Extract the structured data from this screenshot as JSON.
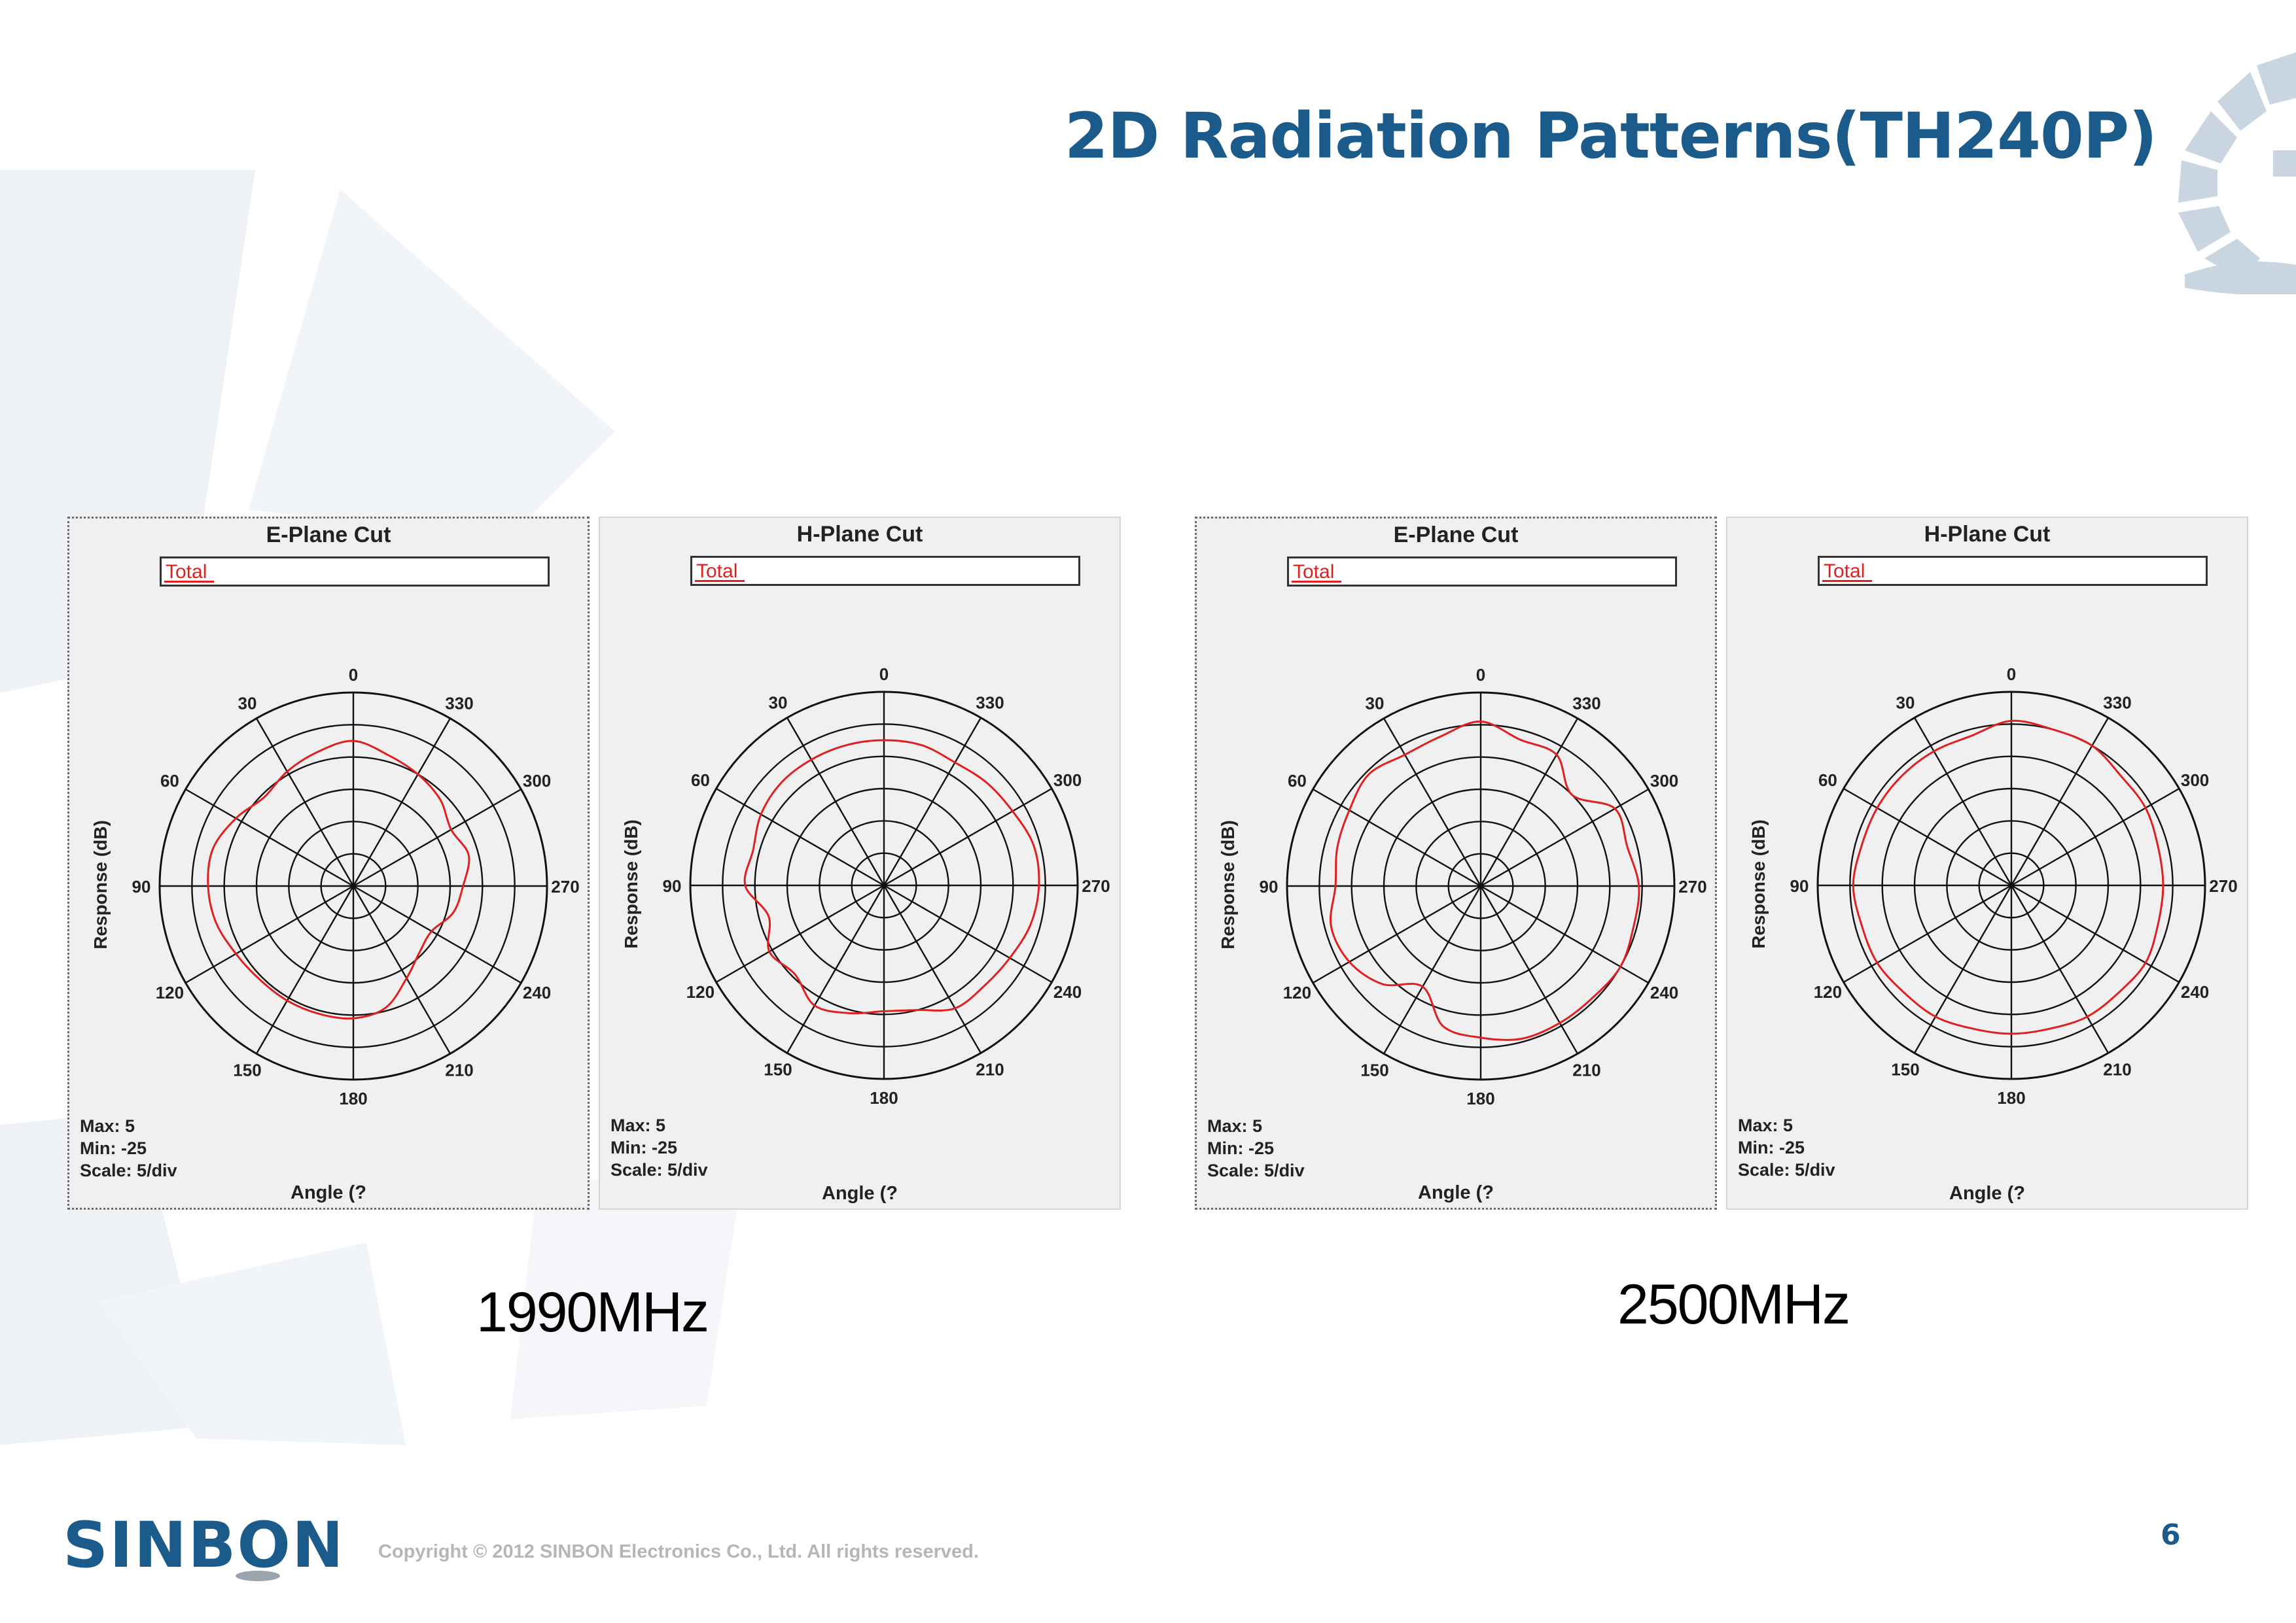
{
  "slide": {
    "title": "2D Radiation Patterns(TH240P)",
    "page_number": "6",
    "copyright": "Copyright © 2012 SINBON Electronics Co., Ltd. All rights reserved.",
    "logo_text": "SINBON",
    "accent_color": "#1b5b8c"
  },
  "groups": [
    {
      "frequency_label": "1990MHz",
      "panels": [
        {
          "title": "E-Plane Cut",
          "legend": "Total",
          "ylabel": "Response  (dB)",
          "xlabel": "Angle  (?",
          "stats": [
            "Max: 5",
            "Min: -25",
            "Scale: 5/div"
          ]
        },
        {
          "title": "H-Plane Cut",
          "legend": "Total",
          "ylabel": "Response  (dB)",
          "xlabel": "Angle  (?",
          "stats": [
            "Max: 5",
            "Min: -25",
            "Scale: 5/div"
          ]
        }
      ]
    },
    {
      "frequency_label": "2500MHz",
      "panels": [
        {
          "title": "E-Plane Cut",
          "legend": "Total",
          "ylabel": "Response  (dB)",
          "xlabel": "Angle  (?",
          "stats": [
            "Max: 5",
            "Min: -25",
            "Scale: 5/div"
          ]
        },
        {
          "title": "H-Plane Cut",
          "legend": "Total",
          "ylabel": "Response  (dB)",
          "xlabel": "Angle  (?",
          "stats": [
            "Max: 5",
            "Min: -25",
            "Scale: 5/div"
          ]
        }
      ]
    }
  ],
  "chart_data": [
    {
      "type": "polar",
      "frequency": "1990MHz",
      "title": "E-Plane Cut",
      "series_name": "Total",
      "r_range_db": [
        -25,
        5
      ],
      "r_scale_db_per_div": 5,
      "angle_direction": "counterclockwise",
      "zero_at": "top",
      "angle_ticks": [
        0,
        30,
        60,
        90,
        120,
        150,
        180,
        210,
        240,
        270,
        300,
        330
      ],
      "line_color": "#e02020",
      "angles": [
        0,
        15,
        30,
        45,
        60,
        75,
        90,
        105,
        120,
        135,
        150,
        165,
        180,
        195,
        210,
        225,
        240,
        255,
        270,
        285,
        300,
        315,
        330,
        345
      ],
      "values_db": [
        -2.5,
        -3.5,
        -4.5,
        -5.5,
        -4,
        -2.5,
        -2.5,
        -3,
        -4,
        -4.5,
        -4.5,
        -4.5,
        -4.5,
        -5.5,
        -8.5,
        -10.5,
        -11,
        -9,
        -8,
        -6.5,
        -7.5,
        -6,
        -5,
        -4
      ]
    },
    {
      "type": "polar",
      "frequency": "1990MHz",
      "title": "H-Plane Cut",
      "series_name": "Total",
      "r_range_db": [
        -25,
        5
      ],
      "r_scale_db_per_div": 5,
      "angle_direction": "counterclockwise",
      "zero_at": "top",
      "angle_ticks": [
        0,
        30,
        60,
        90,
        120,
        150,
        180,
        210,
        240,
        270,
        300,
        330
      ],
      "line_color": "#e02020",
      "angles": [
        0,
        15,
        30,
        45,
        60,
        75,
        90,
        105,
        120,
        135,
        150,
        165,
        180,
        195,
        210,
        225,
        240,
        255,
        270,
        285,
        300,
        315,
        330,
        345
      ],
      "values_db": [
        -2.5,
        -2.5,
        -2.5,
        -2.5,
        -3,
        -4,
        -3.5,
        -6.5,
        -4.5,
        -5.5,
        -3.5,
        -4.5,
        -5.5,
        -5,
        -3,
        -3,
        -2.5,
        -1.5,
        -1,
        -1,
        -2,
        -2.5,
        -3,
        -2.5
      ]
    },
    {
      "type": "polar",
      "frequency": "2500MHz",
      "title": "E-Plane Cut",
      "series_name": "Total",
      "r_range_db": [
        -25,
        5
      ],
      "r_scale_db_per_div": 5,
      "angle_direction": "counterclockwise",
      "zero_at": "top",
      "angle_ticks": [
        0,
        30,
        60,
        90,
        120,
        150,
        180,
        210,
        240,
        270,
        300,
        330
      ],
      "line_color": "#e02020",
      "angles": [
        0,
        15,
        30,
        45,
        60,
        75,
        90,
        105,
        120,
        135,
        150,
        165,
        180,
        195,
        210,
        225,
        240,
        255,
        270,
        285,
        300,
        315,
        330,
        345
      ],
      "values_db": [
        0.5,
        -1,
        -1.5,
        -0.5,
        -1.5,
        -2,
        -2.5,
        -1,
        -1.5,
        -3.5,
        -7,
        -2.5,
        -1.5,
        -0.5,
        -0.5,
        -0.5,
        0,
        -0.5,
        -0.5,
        -1.5,
        -1,
        -5,
        -1.5,
        -1.5
      ]
    },
    {
      "type": "polar",
      "frequency": "2500MHz",
      "title": "H-Plane Cut",
      "series_name": "Total",
      "r_range_db": [
        -25,
        5
      ],
      "r_scale_db_per_div": 5,
      "angle_direction": "counterclockwise",
      "zero_at": "top",
      "angle_ticks": [
        0,
        30,
        60,
        90,
        120,
        150,
        180,
        210,
        240,
        270,
        300,
        330
      ],
      "line_color": "#e02020",
      "angles": [
        0,
        15,
        30,
        45,
        60,
        75,
        90,
        105,
        120,
        135,
        150,
        165,
        180,
        195,
        210,
        225,
        240,
        255,
        270,
        285,
        300,
        315,
        330,
        345
      ],
      "values_db": [
        0.5,
        -1,
        -1,
        -1,
        -1,
        -1,
        -0.5,
        -1,
        -1,
        -1.5,
        -1.5,
        -2,
        -2,
        -2,
        -1.5,
        -1.5,
        -1,
        -1.5,
        -1.5,
        -1.5,
        -1,
        -1,
        0,
        0
      ]
    }
  ]
}
